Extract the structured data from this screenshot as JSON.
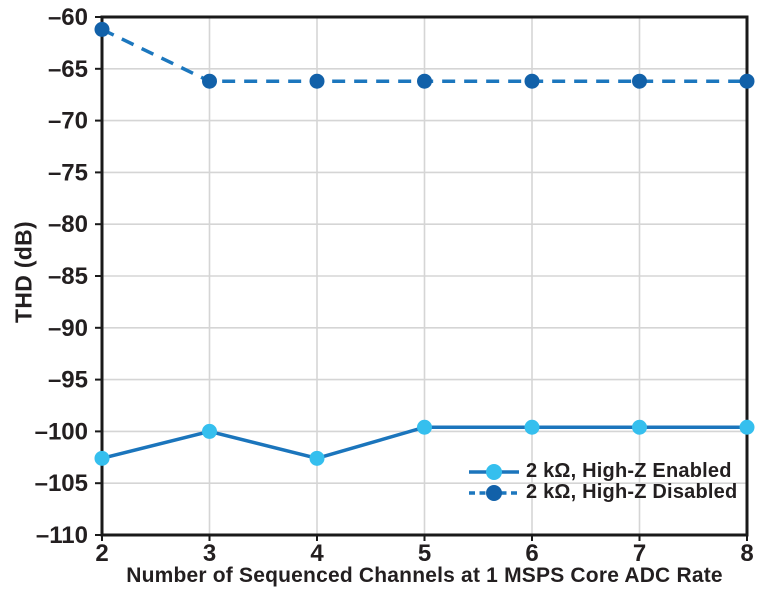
{
  "chart_data": {
    "type": "line",
    "title": "",
    "xlabel": "Number of Sequenced Channels at 1 MSPS Core ADC Rate",
    "ylabel": "THD (dB)",
    "xlim": [
      2,
      8
    ],
    "ylim": [
      -110,
      -60
    ],
    "x": [
      2,
      3,
      4,
      5,
      6,
      7,
      8
    ],
    "x_tick_labels": [
      "2",
      "3",
      "4",
      "5",
      "6",
      "7",
      "8"
    ],
    "y_tick_values": [
      -60,
      -65,
      -70,
      -75,
      -80,
      -85,
      -90,
      -95,
      -100,
      -105,
      -110
    ],
    "y_tick_labels": [
      "–60",
      "–65",
      "–70",
      "–75",
      "–80",
      "–85",
      "–90",
      "–95",
      "–100",
      "–105",
      "–110"
    ],
    "grid": true,
    "legend_position": "lower right",
    "series": [
      {
        "name": "2 kΩ, High-Z Enabled",
        "line_style": "solid",
        "line_color": "#1B75BC",
        "marker_color": "#35BFEE",
        "values": [
          -102.6,
          -100.0,
          -102.6,
          -99.6,
          -99.6,
          -99.6,
          -99.6
        ]
      },
      {
        "name": "2 kΩ, High-Z Disabled",
        "line_style": "dashed",
        "line_color": "#1C77BE",
        "marker_color": "#1261A9",
        "values": [
          -61.2,
          -66.2,
          -66.2,
          -66.2,
          -66.2,
          -66.2,
          -66.2
        ]
      }
    ]
  },
  "colors": {
    "background": "#FFFFFF",
    "grid": "#D5D5D5",
    "axis_border": "#1A1A1A",
    "text": "#231F20"
  }
}
